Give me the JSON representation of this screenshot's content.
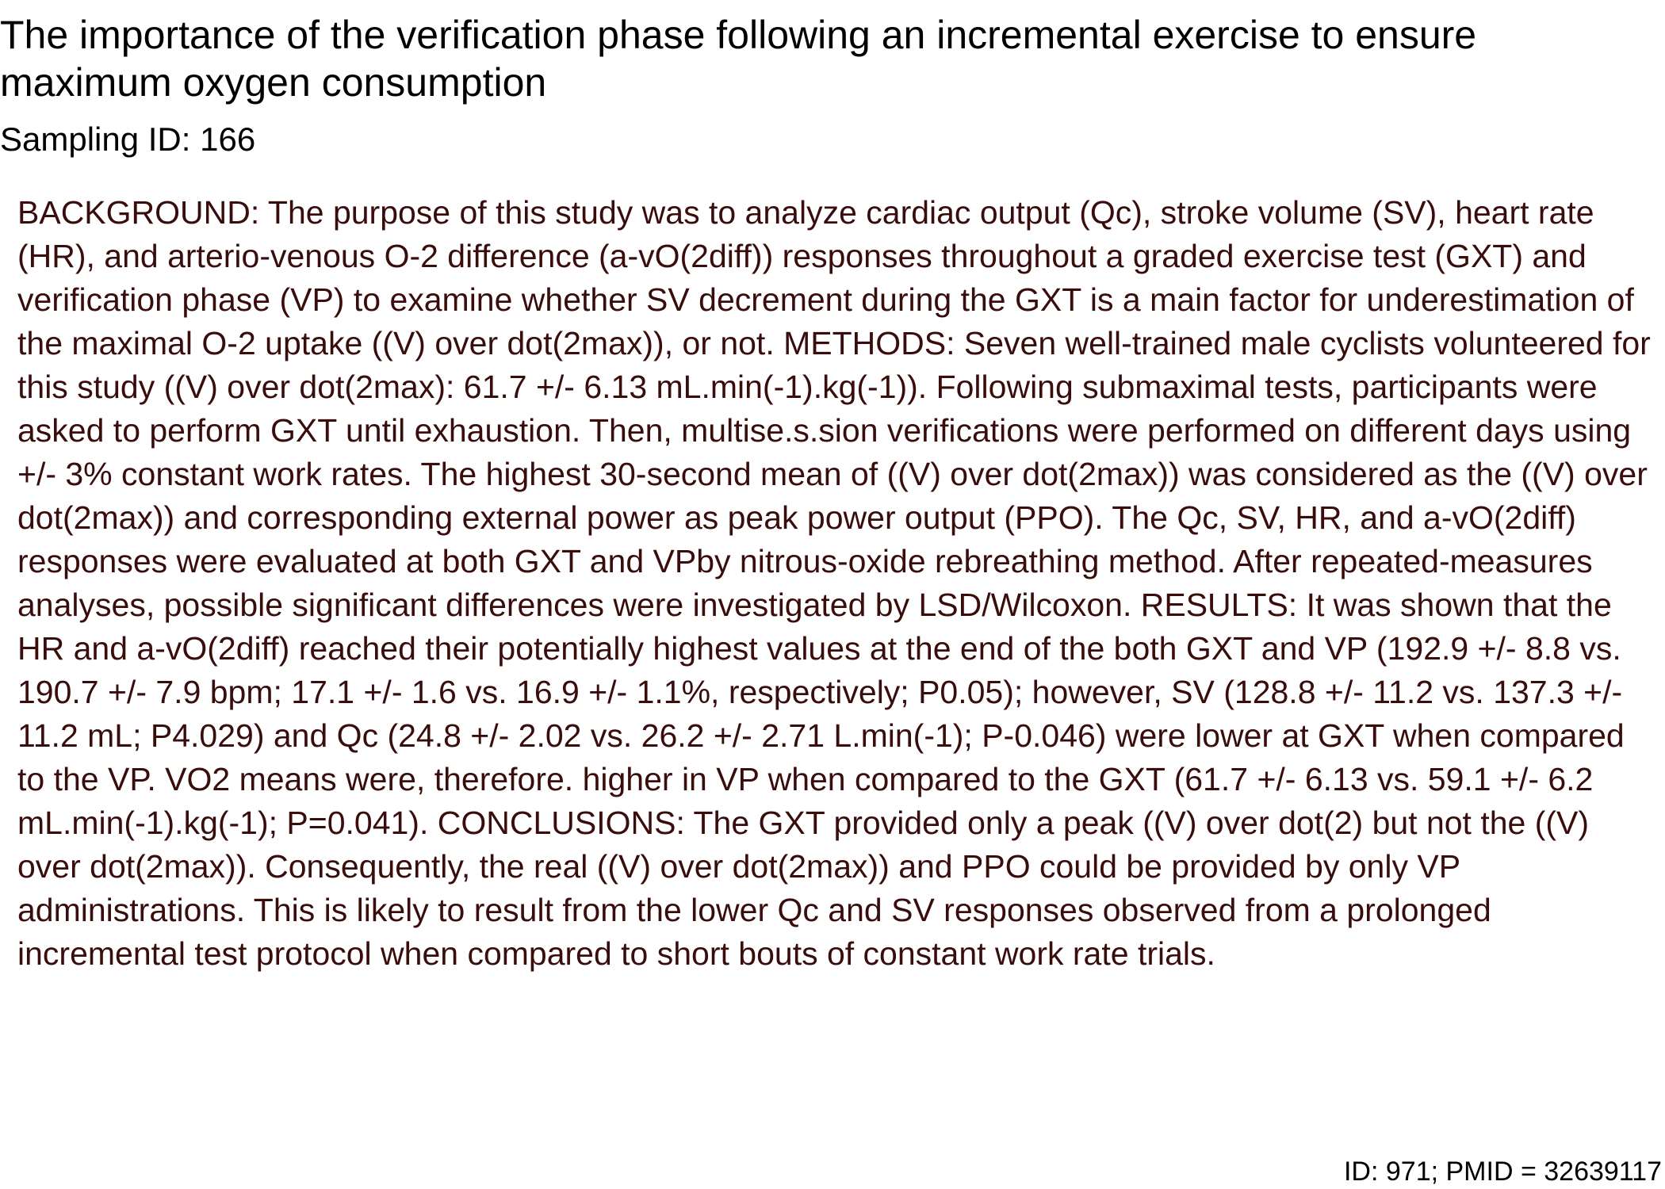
{
  "document": {
    "title": "The importance of the verification phase following an incremental exercise to ensure maximum oxygen consumption",
    "sampling_id": "Sampling ID: 166",
    "abstract": "BACKGROUND: The purpose of this study was to analyze cardiac output (Qc), stroke volume (SV), heart rate (HR), and arterio-venous O-2 difference (a-vO(2diff)) responses throughout a graded exercise test (GXT) and verification phase (VP) to examine whether SV decrement during the GXT is a main factor for underestimation of the maximal O-2 uptake ((V) over dot(2max)), or not. METHODS: Seven well-trained male cyclists volunteered for this study ((V) over dot(2max): 61.7 +/- 6.13 mL.min(-1).kg(-1)). Following submaximal tests, participants were asked to perform GXT until exhaustion. Then, multise.s.sion verifications were performed on different days using +/- 3% constant work rates. The highest 30-second mean of ((V) over dot(2max)) was considered as the ((V) over dot(2max)) and corresponding external power as peak power output (PPO). The Qc, SV, HR, and a-vO(2diff) responses were evaluated at both GXT and VPby nitrous-oxide rebreathing method. After repeated-measures analyses, possible significant differences were investigated by LSD/Wilcoxon. RESULTS: It was shown that the HR and a-vO(2diff) reached their potentially highest values at the end of the both GXT and VP (192.9 +/- 8.8 vs. 190.7 +/- 7.9 bpm; 17.1 +/- 1.6 vs. 16.9 +/- 1.1%, respectively; P0.05); however, SV (128.8 +/- 11.2 vs. 137.3 +/- 11.2 mL; P4.029) and Qc (24.8 +/- 2.02 vs. 26.2 +/- 2.71 L.min(-1); P-0.046) were lower at GXT when compared to the VP. VO2 means were, therefore. higher in VP when compared to the GXT (61.7 +/- 6.13 vs. 59.1 +/- 6.2 mL.min(-1).kg(-1); P=0.041). CONCLUSIONS: The GXT provided only a peak ((V) over dot(2) but not the ((V) over dot(2max)). Consequently, the real ((V) over dot(2max)) and PPO could be provided by only VP administrations. This is likely to result from the lower Qc and SV responses observed from a prolonged incremental test protocol when compared to short bouts of constant work rate trials.",
    "footer_id": "ID: 971; PMID = 32639117"
  },
  "colors": {
    "title_text": "#000000",
    "abstract_text": "#3a0d0d"
  }
}
